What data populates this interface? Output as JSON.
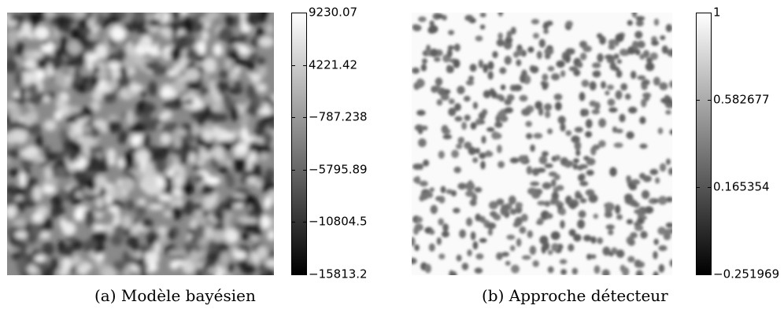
{
  "chart_data": [
    {
      "type": "heatmap",
      "caption": "(a) Modèle bayésien",
      "colormap": "gray",
      "colorbar": {
        "min": -15813.2,
        "max": 9230.07,
        "tick_values": [
          9230.07,
          4221.42,
          -787.238,
          -5795.89,
          -10804.5,
          -15813.2
        ],
        "tick_labels": [
          "9230.07",
          "4221.42",
          "−787.238",
          "−5795.89",
          "−10804.5",
          "−15813.2"
        ]
      }
    },
    {
      "type": "heatmap",
      "caption": "(b) Approche détecteur",
      "colormap": "gray",
      "colorbar": {
        "min": -0.251969,
        "max": 1,
        "tick_values": [
          1,
          0.582677,
          0.165354,
          -0.251969
        ],
        "tick_labels": [
          "1",
          "0.582677",
          "0.165354",
          "−0.251969"
        ]
      }
    }
  ]
}
